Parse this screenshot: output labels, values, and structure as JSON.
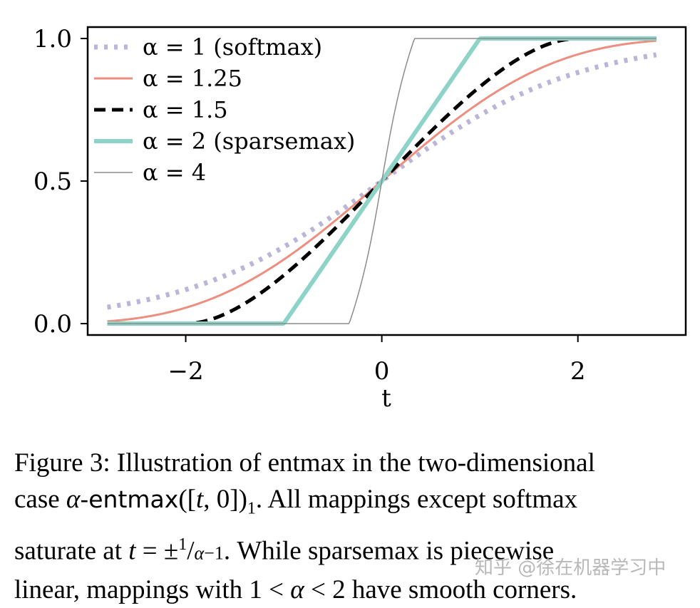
{
  "chart_data": {
    "type": "line",
    "title": "",
    "xlabel": "t",
    "ylabel": "",
    "xlim": [
      -3.0,
      3.1
    ],
    "ylim": [
      -0.04,
      1.04
    ],
    "xticks": [
      -2,
      0,
      2
    ],
    "xtick_labels": [
      "−2",
      "0",
      "2"
    ],
    "yticks": [
      0.0,
      0.5,
      1.0
    ],
    "ytick_labels": [
      "0.0",
      "0.5",
      "1.0"
    ],
    "legend_position": "top-left",
    "x_range": [
      -2.8,
      2.8
    ],
    "series": [
      {
        "name": "α = 1 (softmax)",
        "alpha": 1,
        "color": "#b9b6d8",
        "style": "dotted",
        "x": [
          -2.8,
          -2,
          -1,
          0,
          1,
          2,
          2.8
        ],
        "y": [
          0.057,
          0.119,
          0.269,
          0.5,
          0.731,
          0.881,
          0.943
        ]
      },
      {
        "name": "α = 1.25",
        "alpha": 1.25,
        "color": "#ec8e80",
        "style": "solid",
        "x": [
          -2.8,
          -2,
          -1,
          0,
          1,
          2,
          2.8
        ],
        "y": [
          0.011,
          0.06,
          0.228,
          0.5,
          0.772,
          0.94,
          0.989
        ]
      },
      {
        "name": "α = 1.5",
        "alpha": 1.5,
        "color": "#000000",
        "style": "dashed",
        "x": [
          -2.8,
          -2,
          -1,
          0,
          1,
          2,
          2.8
        ],
        "y": [
          0.0,
          0.0,
          0.188,
          0.5,
          0.812,
          1.0,
          1.0
        ]
      },
      {
        "name": "α = 2 (sparsemax)",
        "alpha": 2,
        "color": "#8dd3c7",
        "style": "solid",
        "x": [
          -2.8,
          -1,
          1,
          2.8
        ],
        "y": [
          0.0,
          0.0,
          1.0,
          1.0
        ]
      },
      {
        "name": "α = 4",
        "alpha": 4,
        "color": "#8c8c8c",
        "style": "thin",
        "x": [
          -2.8,
          -0.333,
          0.333,
          2.8
        ],
        "y": [
          0.0,
          0.0,
          1.0,
          1.0
        ]
      }
    ]
  },
  "caption": {
    "line1": "Figure 3:  Illustration of entmax in the two-dimensional",
    "line2_pre": "case ",
    "line2_alpha": "α",
    "line2_func": "-entmax",
    "line2_args": "([",
    "line2_t": "t",
    "line2_rest": ", 0])",
    "line2_sub": "1",
    "line2_post": ".  All mappings except softmax",
    "line3_pre": "saturate at ",
    "line3_t": "t",
    "line3_eq": " = ±",
    "line3_num": "1",
    "line3_slash": "/",
    "line3_den_alpha": "α",
    "line3_den_rest": "−1",
    "line3_post": ". While sparsemax is piecewise",
    "line4_pre": "linear, mappings with 1 < ",
    "line4_alpha": "α",
    "line4_post": " < 2 have smooth corners."
  },
  "watermark": "知乎 @徐在机器学习中"
}
